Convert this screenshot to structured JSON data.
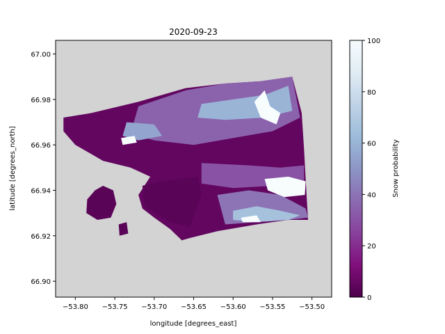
{
  "chart_data": {
    "type": "heatmap",
    "title": "2020-09-23",
    "xlabel": "longitude [degrees_east]",
    "ylabel": "latitude [degrees_north]",
    "xlim": [
      -53.825,
      -53.475
    ],
    "ylim": [
      66.893,
      67.006
    ],
    "x_ticks": [
      -53.8,
      -53.75,
      -53.7,
      -53.65,
      -53.6,
      -53.55,
      -53.5
    ],
    "x_tick_labels": [
      "−53.80",
      "−53.75",
      "−53.70",
      "−53.65",
      "−53.60",
      "−53.55",
      "−53.50"
    ],
    "y_ticks": [
      66.9,
      66.92,
      66.94,
      66.96,
      66.98,
      67.0
    ],
    "y_tick_labels": [
      "66.90",
      "66.92",
      "66.94",
      "66.96",
      "66.98",
      "67.00"
    ],
    "colorbar": {
      "label": "Snow probability",
      "range": [
        0,
        100
      ],
      "ticks": [
        0,
        20,
        40,
        60,
        80,
        100
      ],
      "tick_labels": [
        "0",
        "20",
        "40",
        "60",
        "80",
        "100"
      ],
      "colormap": "BuPu_r",
      "stops": [
        "#4d004b",
        "#810f7c",
        "#88419d",
        "#8c6bb1",
        "#8c96c6",
        "#9ebcda",
        "#bfd3e6",
        "#e0ecf4",
        "#f7fcfd"
      ]
    },
    "background_color": "#d3d3d3",
    "grid": false,
    "regions": [
      {
        "name": "main-swath",
        "value": 5,
        "polygon": [
          [
            -53.815,
            66.972
          ],
          [
            -53.78,
            66.974
          ],
          [
            -53.72,
            66.979
          ],
          [
            -53.66,
            66.985
          ],
          [
            -53.61,
            66.987
          ],
          [
            -53.565,
            66.988
          ],
          [
            -53.525,
            66.99
          ],
          [
            -53.513,
            66.974
          ],
          [
            -53.51,
            66.958
          ],
          [
            -53.508,
            66.945
          ],
          [
            -53.505,
            66.927
          ],
          [
            -53.53,
            66.927
          ],
          [
            -53.57,
            66.925
          ],
          [
            -53.62,
            66.922
          ],
          [
            -53.655,
            66.919
          ],
          [
            -53.665,
            66.918
          ],
          [
            -53.68,
            66.923
          ],
          [
            -53.7,
            66.928
          ],
          [
            -53.715,
            66.932
          ],
          [
            -53.72,
            66.938
          ],
          [
            -53.705,
            66.946
          ],
          [
            -53.73,
            66.95
          ],
          [
            -53.765,
            66.953
          ],
          [
            -53.8,
            66.96
          ],
          [
            -53.815,
            66.966
          ]
        ]
      },
      {
        "name": "northern-field",
        "value": 35,
        "polygon": [
          [
            -53.72,
            66.977
          ],
          [
            -53.66,
            66.984
          ],
          [
            -53.61,
            66.987
          ],
          [
            -53.565,
            66.988
          ],
          [
            -53.525,
            66.99
          ],
          [
            -53.515,
            66.972
          ],
          [
            -53.55,
            66.966
          ],
          [
            -53.6,
            66.963
          ],
          [
            -53.65,
            66.96
          ],
          [
            -53.7,
            66.962
          ],
          [
            -53.73,
            66.965
          ]
        ]
      },
      {
        "name": "upper-right-light",
        "value": 60,
        "polygon": [
          [
            -53.64,
            66.978
          ],
          [
            -53.6,
            66.98
          ],
          [
            -53.56,
            66.982
          ],
          [
            -53.53,
            66.986
          ],
          [
            -53.525,
            66.975
          ],
          [
            -53.56,
            66.972
          ],
          [
            -53.61,
            66.971
          ],
          [
            -53.645,
            66.972
          ]
        ]
      },
      {
        "name": "mid-band-light",
        "value": 55,
        "polygon": [
          [
            -53.735,
            66.97
          ],
          [
            -53.7,
            66.969
          ],
          [
            -53.69,
            66.964
          ],
          [
            -53.72,
            66.962
          ],
          [
            -53.74,
            66.964
          ]
        ]
      },
      {
        "name": "mid-strip",
        "value": 30,
        "polygon": [
          [
            -53.64,
            66.952
          ],
          [
            -53.58,
            66.951
          ],
          [
            -53.54,
            66.95
          ],
          [
            -53.51,
            66.951
          ],
          [
            -53.51,
            66.944
          ],
          [
            -53.55,
            66.942
          ],
          [
            -53.6,
            66.941
          ],
          [
            -53.64,
            66.943
          ]
        ]
      },
      {
        "name": "southern-field",
        "value": 40,
        "polygon": [
          [
            -53.62,
            66.938
          ],
          [
            -53.58,
            66.94
          ],
          [
            -53.54,
            66.938
          ],
          [
            -53.508,
            66.932
          ],
          [
            -53.505,
            66.928
          ],
          [
            -53.53,
            66.927
          ],
          [
            -53.57,
            66.926
          ],
          [
            -53.61,
            66.925
          ]
        ]
      },
      {
        "name": "southern-light",
        "value": 65,
        "polygon": [
          [
            -53.6,
            66.931
          ],
          [
            -53.57,
            66.933
          ],
          [
            -53.54,
            66.931
          ],
          [
            -53.515,
            66.929
          ],
          [
            -53.53,
            66.927
          ],
          [
            -53.57,
            66.926
          ],
          [
            -53.6,
            66.927
          ]
        ]
      },
      {
        "name": "western-islands",
        "value": 3,
        "polygon": [
          [
            -53.785,
            66.936
          ],
          [
            -53.775,
            66.94
          ],
          [
            -53.765,
            66.942
          ],
          [
            -53.752,
            66.94
          ],
          [
            -53.748,
            66.934
          ],
          [
            -53.755,
            66.928
          ],
          [
            -53.772,
            66.927
          ],
          [
            -53.786,
            66.93
          ]
        ]
      },
      {
        "name": "small-island",
        "value": 3,
        "polygon": [
          [
            -53.745,
            66.925
          ],
          [
            -53.735,
            66.926
          ],
          [
            -53.733,
            66.921
          ],
          [
            -53.744,
            66.92
          ]
        ]
      },
      {
        "name": "central-island",
        "value": 3,
        "polygon": [
          [
            -53.715,
            66.942
          ],
          [
            -53.69,
            66.944
          ],
          [
            -53.665,
            66.945
          ],
          [
            -53.645,
            66.946
          ],
          [
            -53.64,
            66.938
          ],
          [
            -53.655,
            66.924
          ],
          [
            -53.68,
            66.926
          ],
          [
            -53.712,
            66.933
          ]
        ]
      },
      {
        "name": "snow-patch-ne",
        "value": 100,
        "polygon": [
          [
            -53.573,
            66.979
          ],
          [
            -53.56,
            66.984
          ],
          [
            -53.553,
            66.977
          ],
          [
            -53.54,
            66.974
          ],
          [
            -53.545,
            66.969
          ],
          [
            -53.565,
            66.972
          ]
        ]
      },
      {
        "name": "snow-patch-e",
        "value": 100,
        "polygon": [
          [
            -53.56,
            66.945
          ],
          [
            -53.53,
            66.946
          ],
          [
            -53.508,
            66.944
          ],
          [
            -53.509,
            66.938
          ],
          [
            -53.535,
            66.937
          ],
          [
            -53.556,
            66.94
          ]
        ]
      },
      {
        "name": "snow-patch-w",
        "value": 100,
        "polygon": [
          [
            -53.742,
            66.963
          ],
          [
            -53.725,
            66.964
          ],
          [
            -53.722,
            66.961
          ],
          [
            -53.74,
            66.96
          ]
        ]
      },
      {
        "name": "snow-patch-s",
        "value": 100,
        "polygon": [
          [
            -53.59,
            66.928
          ],
          [
            -53.57,
            66.929
          ],
          [
            -53.565,
            66.926
          ],
          [
            -53.588,
            66.926
          ]
        ]
      }
    ]
  }
}
